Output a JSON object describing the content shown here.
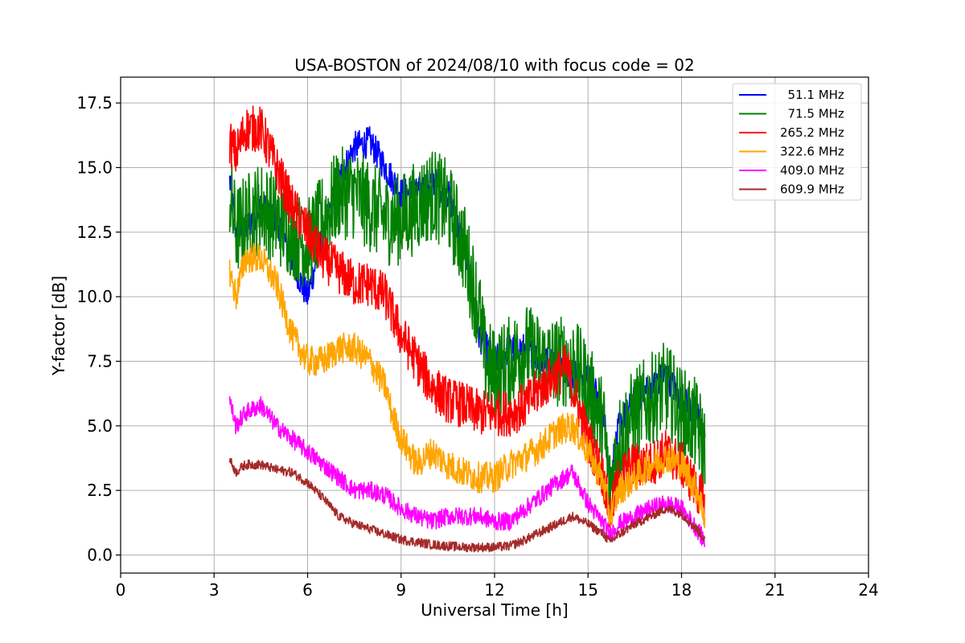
{
  "chart_data": {
    "type": "line",
    "title": "USA-BOSTON of 2024/08/10 with focus code = 02",
    "xlabel": "Universal Time [h]",
    "ylabel": "Y-factor [dB]",
    "xlim": [
      0,
      24
    ],
    "ylim": [
      -0.7,
      18.5
    ],
    "xticks": [
      0,
      3,
      6,
      9,
      12,
      15,
      18,
      21,
      24
    ],
    "xtick_labels": [
      "0",
      "3",
      "6",
      "9",
      "12",
      "15",
      "18",
      "21",
      "24"
    ],
    "yticks": [
      0.0,
      2.5,
      5.0,
      7.5,
      10.0,
      12.5,
      15.0,
      17.5
    ],
    "ytick_labels": [
      "0.0",
      "2.5",
      "5.0",
      "7.5",
      "10.0",
      "12.5",
      "15.0",
      "17.5"
    ],
    "grid": true,
    "legend_position": "top-right",
    "series": [
      {
        "name": "  51.1 MHz",
        "color": "#0000ff",
        "noise": 0.6,
        "x": [
          3.5,
          3.7,
          4.0,
          4.5,
          5.0,
          5.5,
          5.8,
          6.0,
          6.5,
          7.0,
          7.5,
          8.0,
          8.5,
          9.0,
          9.5,
          10.0,
          10.5,
          11.0,
          11.5,
          12.0,
          12.5,
          13.0,
          13.5,
          14.0,
          14.5,
          15.0,
          15.5,
          15.7,
          16.0,
          16.5,
          17.0,
          17.5,
          18.0,
          18.5,
          18.75
        ],
        "y": [
          14.5,
          12.5,
          12.6,
          13.5,
          13.0,
          11.5,
          10.5,
          10.0,
          12.5,
          14.5,
          15.8,
          16.0,
          15.0,
          14.0,
          14.0,
          14.5,
          14.0,
          12.0,
          8.5,
          7.5,
          8.0,
          8.0,
          7.5,
          7.5,
          7.0,
          7.0,
          5.5,
          3.0,
          5.0,
          6.0,
          6.5,
          7.0,
          6.0,
          5.5,
          4.5
        ]
      },
      {
        "name": "  71.5 MHz",
        "color": "#008000",
        "noise": 1.8,
        "x": [
          3.5,
          3.7,
          4.0,
          4.5,
          5.0,
          5.5,
          6.0,
          6.5,
          7.0,
          7.5,
          8.0,
          8.5,
          9.0,
          9.5,
          10.0,
          10.5,
          11.0,
          11.5,
          11.7,
          12.0,
          12.5,
          13.0,
          13.5,
          14.0,
          14.5,
          15.0,
          15.5,
          15.7,
          16.0,
          16.5,
          17.0,
          17.5,
          18.0,
          18.5,
          18.75
        ],
        "y": [
          14.0,
          12.5,
          13.0,
          13.5,
          13.0,
          12.5,
          12.0,
          13.0,
          14.0,
          14.0,
          13.5,
          13.0,
          13.0,
          13.5,
          14.0,
          13.5,
          12.0,
          9.5,
          7.5,
          7.0,
          7.5,
          8.0,
          7.5,
          7.5,
          7.5,
          6.5,
          5.0,
          2.5,
          4.5,
          5.5,
          6.0,
          6.5,
          5.5,
          5.0,
          4.0
        ]
      },
      {
        "name": "265.2 MHz",
        "color": "#ff0000",
        "noise": 0.9,
        "x": [
          3.5,
          3.7,
          4.0,
          4.5,
          5.0,
          5.5,
          6.0,
          6.5,
          7.0,
          7.5,
          8.0,
          8.5,
          9.0,
          9.5,
          10.0,
          10.5,
          11.0,
          11.5,
          12.0,
          12.5,
          13.0,
          13.5,
          14.0,
          14.3,
          14.5,
          15.0,
          15.5,
          15.7,
          16.0,
          16.5,
          17.0,
          17.5,
          18.0,
          18.5,
          18.75
        ],
        "y": [
          16.0,
          15.5,
          16.5,
          16.5,
          15.0,
          13.5,
          12.5,
          11.5,
          11.0,
          10.5,
          10.5,
          10.0,
          8.5,
          7.5,
          6.5,
          6.0,
          5.8,
          5.5,
          5.5,
          5.5,
          5.8,
          6.5,
          7.0,
          7.3,
          6.5,
          4.5,
          3.0,
          1.5,
          3.0,
          3.5,
          3.5,
          4.0,
          3.5,
          2.5,
          2.0
        ]
      },
      {
        "name": "322.6 MHz",
        "color": "#ffa500",
        "noise": 0.6,
        "x": [
          3.5,
          3.7,
          4.0,
          4.5,
          5.0,
          5.5,
          6.0,
          6.5,
          7.0,
          7.5,
          8.0,
          8.5,
          8.7,
          9.0,
          9.5,
          10.0,
          10.5,
          11.0,
          11.5,
          12.0,
          12.5,
          13.0,
          13.5,
          14.0,
          14.5,
          15.0,
          15.5,
          15.7,
          16.0,
          16.5,
          17.0,
          17.5,
          18.0,
          18.5,
          18.75
        ],
        "y": [
          11.0,
          10.0,
          11.5,
          11.5,
          10.5,
          8.5,
          7.5,
          7.5,
          8.0,
          8.0,
          7.5,
          6.5,
          5.5,
          4.5,
          3.5,
          4.0,
          3.5,
          3.2,
          3.0,
          3.0,
          3.5,
          3.8,
          4.2,
          4.8,
          5.0,
          4.0,
          2.8,
          1.5,
          2.5,
          3.0,
          3.5,
          3.8,
          3.5,
          2.5,
          1.5
        ]
      },
      {
        "name": "409.0 MHz",
        "color": "#ff00ff",
        "noise": 0.35,
        "x": [
          3.5,
          3.7,
          4.0,
          4.5,
          5.0,
          5.5,
          6.0,
          6.5,
          7.0,
          7.5,
          8.0,
          8.5,
          9.0,
          9.5,
          10.0,
          10.5,
          11.0,
          11.5,
          12.0,
          12.5,
          13.0,
          13.5,
          14.0,
          14.5,
          15.0,
          15.5,
          15.7,
          16.0,
          16.5,
          17.0,
          17.5,
          18.0,
          18.5,
          18.75
        ],
        "y": [
          6.0,
          5.0,
          5.5,
          5.8,
          5.0,
          4.5,
          4.0,
          3.5,
          3.0,
          2.5,
          2.5,
          2.3,
          1.8,
          1.5,
          1.3,
          1.5,
          1.5,
          1.5,
          1.3,
          1.3,
          1.8,
          2.3,
          2.8,
          3.2,
          2.0,
          1.2,
          0.8,
          1.2,
          1.5,
          1.8,
          2.0,
          1.8,
          1.0,
          0.5
        ]
      },
      {
        "name": "609.9 MHz",
        "color": "#a52a2a",
        "noise": 0.18,
        "x": [
          3.5,
          3.7,
          4.0,
          4.5,
          5.0,
          5.5,
          6.0,
          6.5,
          7.0,
          7.5,
          8.0,
          8.5,
          9.0,
          9.5,
          10.0,
          10.5,
          11.0,
          11.5,
          12.0,
          12.5,
          13.0,
          13.5,
          14.0,
          14.5,
          15.0,
          15.5,
          15.7,
          16.0,
          16.5,
          17.0,
          17.5,
          18.0,
          18.5,
          18.75
        ],
        "y": [
          3.7,
          3.2,
          3.5,
          3.5,
          3.3,
          3.2,
          2.8,
          2.2,
          1.5,
          1.2,
          1.0,
          0.8,
          0.6,
          0.5,
          0.4,
          0.35,
          0.3,
          0.3,
          0.3,
          0.35,
          0.6,
          0.9,
          1.2,
          1.5,
          1.2,
          0.8,
          0.5,
          0.8,
          1.2,
          1.5,
          1.8,
          1.6,
          1.0,
          0.6
        ]
      }
    ]
  }
}
